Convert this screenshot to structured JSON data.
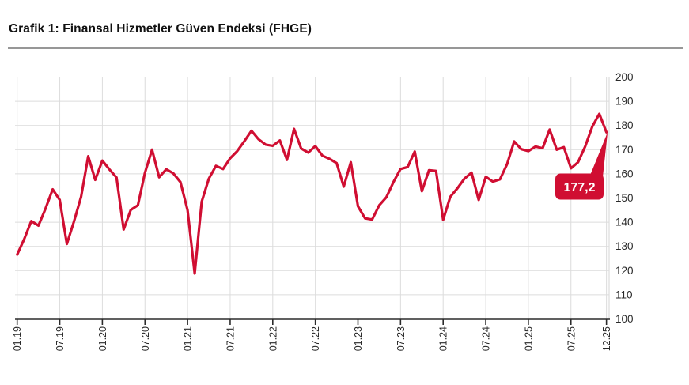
{
  "page": {
    "title": "Grafik 1: Finansal Hizmetler Güven Endeksi (FHGE)"
  },
  "chart_data": {
    "type": "line",
    "title": "Grafik 1: Finansal Hizmetler Güven Endeksi (FHGE)",
    "frequency": "monthly",
    "x_range": [
      "01.2019",
      "12.2025"
    ],
    "x_tick_labels": [
      "01.19",
      "07.19",
      "01.20",
      "07.20",
      "01.21",
      "07.21",
      "01.22",
      "07.22",
      "01.23",
      "07.23",
      "01.24",
      "07.24",
      "01.25",
      "07.25",
      "12.25"
    ],
    "x_tick_month_indices": [
      0,
      6,
      12,
      18,
      24,
      30,
      36,
      42,
      48,
      54,
      60,
      66,
      72,
      78,
      83
    ],
    "y_ticks": [
      100,
      110,
      120,
      130,
      140,
      150,
      160,
      170,
      180,
      190,
      200
    ],
    "ylim": [
      100,
      200
    ],
    "y_axis_side": "right",
    "grid": true,
    "series": [
      {
        "name": "FHGE",
        "color": "#d00e32",
        "values": [
          126.6,
          133.1,
          140.5,
          138.6,
          145.7,
          153.6,
          149.2,
          131.0,
          140.3,
          150.5,
          167.3,
          157.5,
          165.5,
          161.8,
          158.5,
          137.0,
          145.1,
          147.0,
          160.4,
          170.0,
          158.6,
          161.9,
          160.2,
          156.6,
          145.0,
          118.8,
          148.5,
          158.0,
          163.3,
          162.0,
          166.4,
          169.4,
          173.5,
          177.8,
          174.3,
          172.1,
          171.6,
          173.8,
          165.8,
          178.6,
          170.5,
          168.8,
          171.5,
          167.5,
          166.2,
          164.4,
          154.7,
          164.8,
          146.6,
          141.6,
          141.1,
          147.0,
          150.3,
          156.6,
          162.0,
          162.8,
          169.2,
          152.8,
          161.5,
          161.2,
          141.0,
          150.5,
          154.0,
          158.0,
          160.5,
          149.2,
          158.8,
          156.8,
          157.7,
          164.0,
          173.4,
          170.2,
          169.4,
          171.3,
          170.6,
          178.3,
          170.0,
          171.0,
          162.3,
          164.8,
          171.3,
          179.5,
          184.8,
          177.2
        ]
      }
    ],
    "annotation": {
      "label": "177,2",
      "value": 177.2,
      "month": "12.25"
    },
    "colors": {
      "line": "#d00e32",
      "grid": "#dcdcdc",
      "axis": "#2b2b2b",
      "tick_text": "#2a2a2a",
      "badge_bg": "#d00e32",
      "badge_text": "#ffffff"
    }
  }
}
